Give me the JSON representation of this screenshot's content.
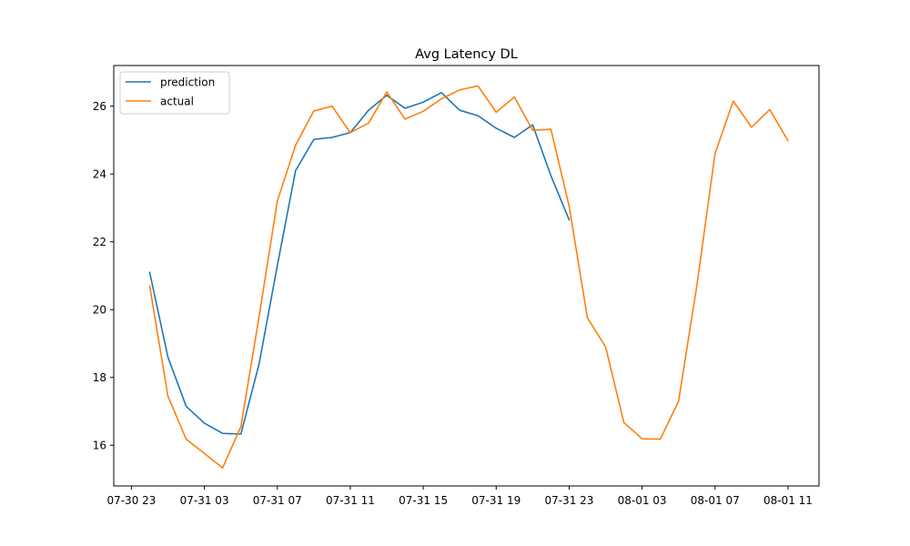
{
  "chart_data": {
    "type": "line",
    "title": "Avg Latency DL",
    "xlabel": "",
    "ylabel": "",
    "x_hours": [
      1,
      2,
      3,
      4,
      5,
      6,
      7,
      8,
      9,
      10,
      11,
      12,
      13,
      14,
      15,
      16,
      17,
      18,
      19,
      20,
      21,
      22,
      23,
      24,
      25,
      26,
      27,
      28,
      29,
      30,
      31,
      32,
      33,
      34,
      35,
      36
    ],
    "xlim_hours": [
      -0.97,
      37.7
    ],
    "ylim": [
      14.8,
      27.2
    ],
    "x_ticks": [
      {
        "hour": 0,
        "label": "07-30 23"
      },
      {
        "hour": 4,
        "label": "07-31 03"
      },
      {
        "hour": 8,
        "label": "07-31 07"
      },
      {
        "hour": 12,
        "label": "07-31 11"
      },
      {
        "hour": 16,
        "label": "07-31 15"
      },
      {
        "hour": 20,
        "label": "07-31 19"
      },
      {
        "hour": 24,
        "label": "07-31 23"
      },
      {
        "hour": 28,
        "label": "08-01 03"
      },
      {
        "hour": 32,
        "label": "08-01 07"
      },
      {
        "hour": 36,
        "label": "08-01 11"
      }
    ],
    "y_ticks": [
      {
        "value": 16,
        "label": "16"
      },
      {
        "value": 18,
        "label": "18"
      },
      {
        "value": 20,
        "label": "20"
      },
      {
        "value": 22,
        "label": "22"
      },
      {
        "value": 24,
        "label": "24"
      },
      {
        "value": 26,
        "label": "26"
      }
    ],
    "legend_position": "upper-left",
    "grid": false,
    "series": [
      {
        "name": "prediction",
        "color": "#1f77b4",
        "values": [
          21.1,
          18.6,
          17.15,
          16.65,
          16.35,
          16.33,
          18.4,
          21.3,
          24.1,
          25.02,
          25.08,
          25.22,
          25.88,
          26.32,
          25.94,
          26.12,
          26.4,
          25.88,
          25.72,
          25.35,
          25.08,
          25.45,
          23.95,
          22.65,
          null,
          null,
          null,
          null,
          null,
          null,
          null,
          null,
          null,
          null,
          null,
          null
        ]
      },
      {
        "name": "actual",
        "color": "#ff7f0e",
        "values": [
          20.7,
          17.45,
          16.18,
          15.76,
          15.33,
          16.55,
          19.8,
          23.2,
          24.85,
          25.86,
          26.0,
          25.22,
          25.5,
          26.42,
          25.62,
          25.85,
          26.22,
          26.48,
          26.6,
          25.82,
          26.27,
          25.29,
          25.32,
          23.05,
          19.76,
          18.9,
          16.67,
          16.19,
          16.18,
          17.3,
          20.7,
          24.6,
          26.15,
          25.38,
          25.9,
          24.98
        ]
      }
    ]
  }
}
